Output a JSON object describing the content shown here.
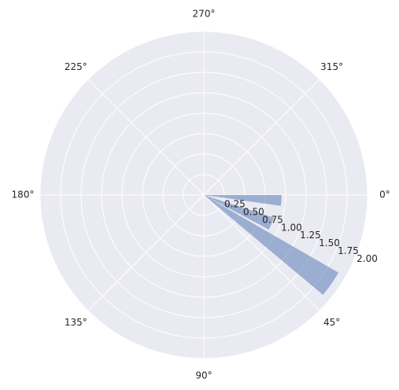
{
  "chart_data": {
    "type": "polar_bar",
    "x": [
      4,
      23,
      35
    ],
    "width": [
      8,
      10,
      10
    ],
    "values": [
      0.95,
      0.9,
      1.9
    ],
    "color": "#4c72b0",
    "alpha": 0.5,
    "ylim": [
      0,
      2
    ],
    "yticks": [
      {
        "value": 0.25,
        "label": "0.25"
      },
      {
        "value": 0.5,
        "label": "0.50"
      },
      {
        "value": 0.75,
        "label": "0.75"
      },
      {
        "value": 1,
        "label": "1.00"
      },
      {
        "value": 1.25,
        "label": "1.25"
      },
      {
        "value": 1.5,
        "label": "1.50"
      },
      {
        "value": 1.75,
        "label": "1.75"
      },
      {
        "value": 2,
        "label": "2.00"
      }
    ],
    "xticks": [
      {
        "value": 0,
        "label": "0°"
      },
      {
        "value": 45,
        "label": "45°"
      },
      {
        "value": 90,
        "label": "90°"
      },
      {
        "value": 135,
        "label": "135°"
      },
      {
        "value": 180,
        "label": "180°"
      },
      {
        "value": 225,
        "label": "225°"
      },
      {
        "value": 270,
        "label": "270°"
      },
      {
        "value": 315,
        "label": "315°"
      }
    ],
    "direction": "clockwise",
    "grid": true
  }
}
